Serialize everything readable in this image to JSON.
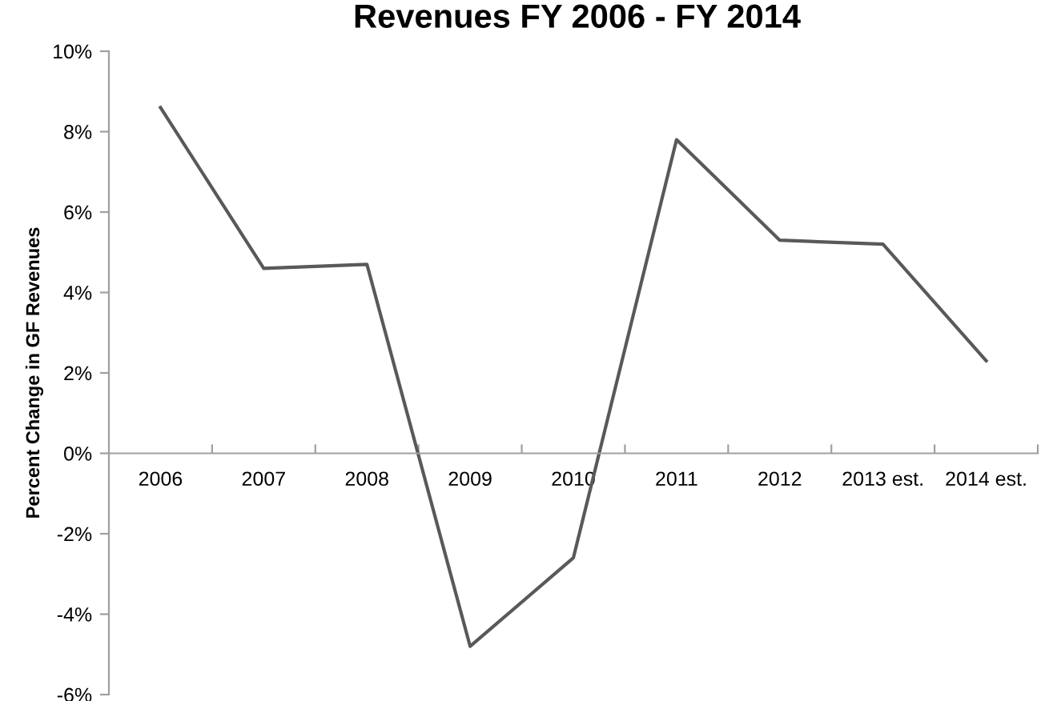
{
  "chart_data": {
    "type": "line",
    "title": "Revenues FY 2006 - FY 2014",
    "ylabel": "Percent Change in GF Revenues",
    "categories": [
      "2006",
      "2007",
      "2008",
      "2009",
      "2010",
      "2011",
      "2012",
      "2013 est.",
      "2014 est."
    ],
    "series": [
      {
        "color": "#595959",
        "values": [
          8.6,
          4.6,
          4.7,
          -4.8,
          -2.6,
          7.8,
          5.3,
          5.2,
          2.3
        ]
      }
    ],
    "ylim": [
      -6,
      10
    ],
    "yticks": [
      {
        "value": -6,
        "label": "-6%"
      },
      {
        "value": -4,
        "label": "-4%"
      },
      {
        "value": -2,
        "label": "-2%"
      },
      {
        "value": 0,
        "label": "0%"
      },
      {
        "value": 2,
        "label": "2%"
      },
      {
        "value": 4,
        "label": "4%"
      },
      {
        "value": 6,
        "label": "6%"
      },
      {
        "value": 8,
        "label": "8%"
      },
      {
        "value": 10,
        "label": "10%"
      }
    ],
    "grid": false,
    "legend": false,
    "marker": "none",
    "line_style": "solid"
  }
}
